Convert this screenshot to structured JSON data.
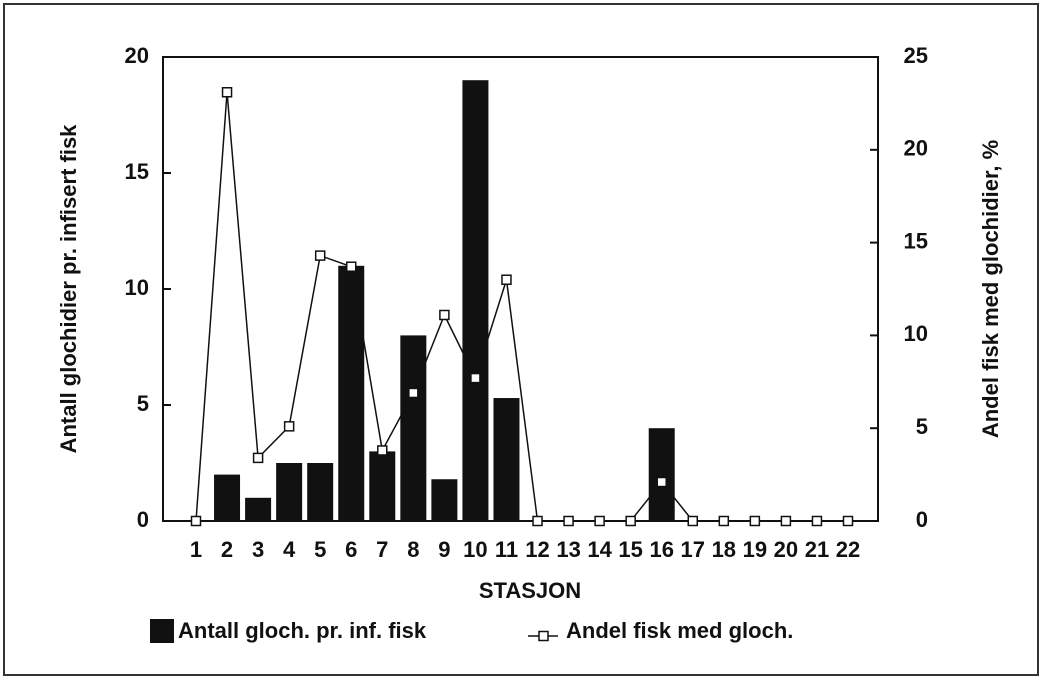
{
  "chart_data": {
    "type": "bar-line",
    "xlabel": "STASJON",
    "ylabel": "Antall glochidier pr. infisert fisk",
    "y2label": "Andel fisk med glochidier, %",
    "categories": [
      "1",
      "2",
      "3",
      "4",
      "5",
      "6",
      "7",
      "8",
      "9",
      "10",
      "11",
      "12",
      "13",
      "14",
      "15",
      "16",
      "17",
      "18",
      "19",
      "20",
      "21",
      "22"
    ],
    "series": [
      {
        "name": "Antall gloch. pr. inf. fisk",
        "type": "bar",
        "color": "#111111",
        "axis": "y",
        "values": [
          0,
          2,
          1,
          2.5,
          2.5,
          11,
          3,
          8,
          1.8,
          19,
          5.3,
          0,
          0,
          0,
          0,
          4,
          0,
          0,
          0,
          0,
          0,
          0
        ]
      },
      {
        "name": "Andel fisk med gloch.",
        "type": "line",
        "color": "#111111",
        "axis": "y2",
        "values": [
          0,
          23.1,
          3.4,
          5.1,
          14.3,
          13.7,
          3.8,
          6.9,
          11.1,
          7.7,
          13.0,
          0,
          0,
          0,
          0,
          2.1,
          0,
          0,
          0,
          0,
          0,
          0
        ]
      }
    ],
    "ylim": [
      0,
      20
    ],
    "yticks": [
      0,
      5,
      10,
      15,
      20
    ],
    "y2lim": [
      0,
      25
    ],
    "y2ticks": [
      0,
      5,
      10,
      15,
      20,
      25
    ],
    "legend": "bottom"
  }
}
